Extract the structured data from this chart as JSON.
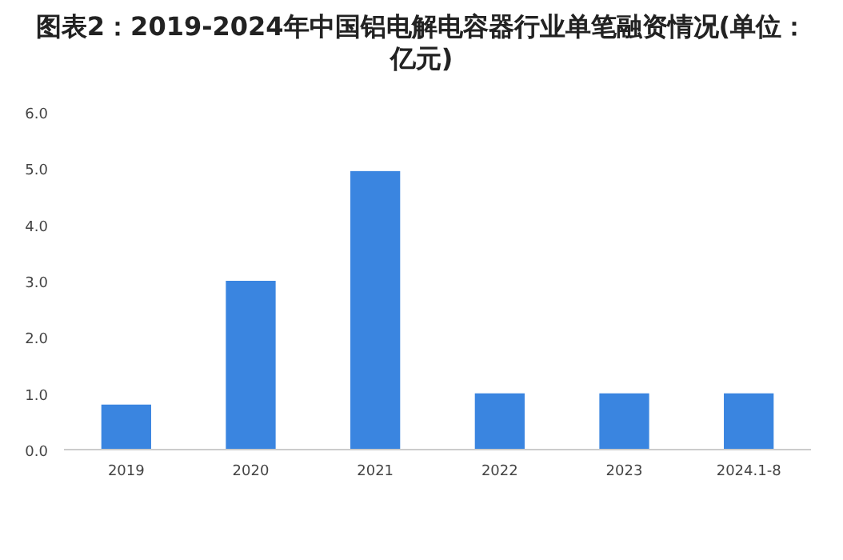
{
  "chart_data": {
    "type": "bar",
    "title": "图表2：2019-2024年中国铝电解电容器行业单笔融资情况(单位：亿元)",
    "categories": [
      "2019",
      "2020",
      "2021",
      "2022",
      "2023",
      "2024.1-8"
    ],
    "values": [
      0.8,
      3.0,
      4.95,
      1.0,
      1.0,
      1.0
    ],
    "color": "#3a85e0",
    "ylim": [
      0,
      6
    ],
    "yticks": [
      {
        "value": 0,
        "label": "0.0"
      },
      {
        "value": 1,
        "label": "1.0"
      },
      {
        "value": 2,
        "label": "2.0"
      },
      {
        "value": 3,
        "label": "3.0"
      },
      {
        "value": 4,
        "label": "4.0"
      },
      {
        "value": 5,
        "label": "5.0"
      },
      {
        "value": 6,
        "label": "6.0"
      }
    ],
    "grid": false
  }
}
